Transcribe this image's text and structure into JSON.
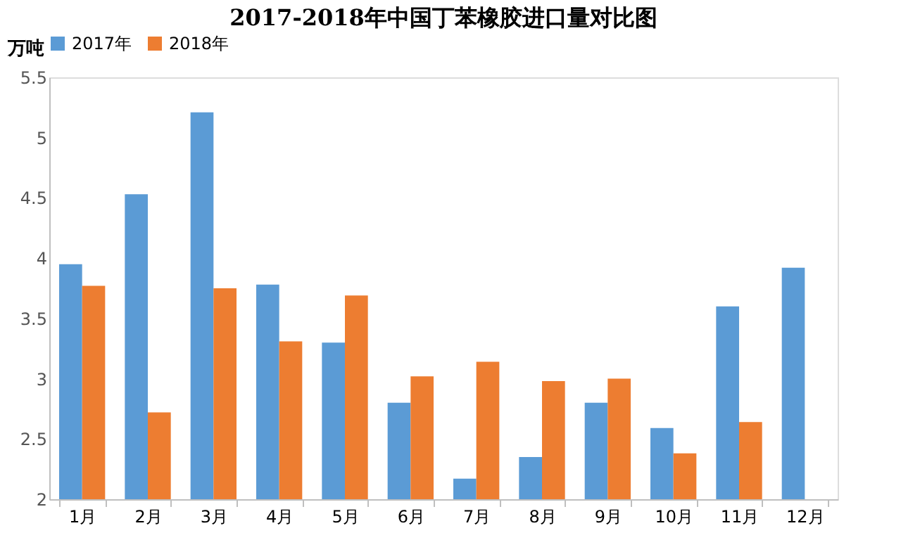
{
  "chart_data": {
    "type": "bar",
    "title": "2017-2018年中国丁苯橡胶进口量对比图",
    "ylabel": "万吨",
    "categories": [
      "1月",
      "2月",
      "3月",
      "4月",
      "5月",
      "6月",
      "7月",
      "8月",
      "9月",
      "10月",
      "11月",
      "12月"
    ],
    "series": [
      {
        "name": "2017年",
        "color": "#5b9bd5",
        "values": [
          3.95,
          4.53,
          5.21,
          3.78,
          3.3,
          2.8,
          2.17,
          2.35,
          2.8,
          2.59,
          3.6,
          3.92
        ]
      },
      {
        "name": "2018年",
        "color": "#ed7d31",
        "values": [
          3.77,
          2.72,
          3.75,
          3.31,
          3.69,
          3.02,
          3.14,
          2.98,
          3.0,
          2.38,
          2.64,
          null
        ]
      }
    ],
    "ylim": [
      2,
      5.5
    ],
    "yticks": [
      2,
      2.5,
      3,
      3.5,
      4,
      4.5,
      5,
      5.5
    ],
    "grid": false,
    "legend": "top"
  }
}
